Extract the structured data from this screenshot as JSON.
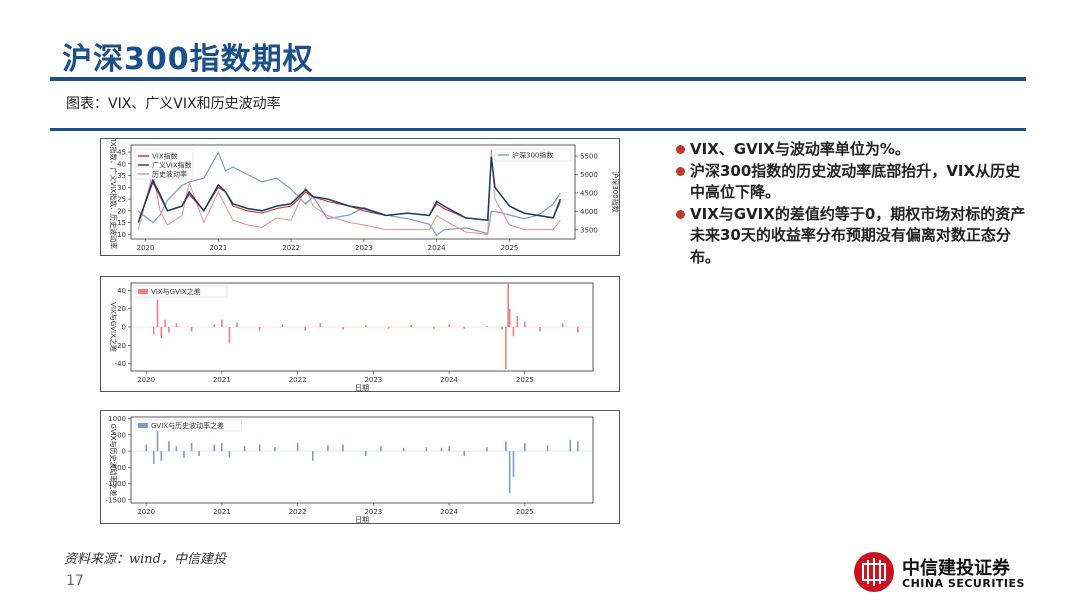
{
  "header": {
    "title": "沪深300指数期权"
  },
  "figure": {
    "caption": "图表：VIX、广义VIX和历史波动率"
  },
  "bullets": [
    "VIX、GVIX与波动率单位为%。",
    "沪深300指数的历史波动率底部抬升，VIX从历史中高位下降。",
    "VIX与GVIX的差值约等于0，期权市场对标的资产未来30天的收益率分布预期没有偏离对数正态分布。"
  ],
  "footer": {
    "source": "资料来源：wind，中信建投",
    "page_number": "17"
  },
  "logo": {
    "name_cn": "中信建投证券",
    "name_en": "CHINA SECURITIES"
  },
  "colors": {
    "accent": "#1b4f8a",
    "vix": "#c0392b",
    "gvix": "#1a3b6b",
    "hv": "#e88f8f",
    "csi300": "#7f9cbf",
    "diff1": "#f08080",
    "diff2": "#7f9cbf"
  },
  "chart_data": [
    {
      "type": "line",
      "x_ticks": [
        "2020",
        "2021",
        "2022",
        "2023",
        "2024",
        "2025"
      ],
      "ylabel": "VIX指数、广义VIX指数、历史波动率",
      "y2label": "沪深300指数",
      "ylim": [
        8,
        48
      ],
      "y_ticks": [
        10,
        15,
        20,
        25,
        30,
        35,
        40,
        45
      ],
      "y2lim": [
        3250,
        5800
      ],
      "y2_ticks": [
        3500,
        4000,
        4500,
        5000,
        5500
      ],
      "legend_left": [
        "VIX指数",
        "广义VIX指数",
        "历史波动率"
      ],
      "legend_right": [
        "沪深300指数"
      ],
      "x": [
        2019.9,
        2020.1,
        2020.2,
        2020.3,
        2020.5,
        2020.6,
        2020.8,
        2021.0,
        2021.1,
        2021.2,
        2021.4,
        2021.6,
        2021.8,
        2022.0,
        2022.2,
        2022.3,
        2022.5,
        2022.8,
        2023.0,
        2023.3,
        2023.6,
        2023.9,
        2024.0,
        2024.1,
        2024.4,
        2024.7,
        2024.75,
        2024.8,
        2025.0,
        2025.2,
        2025.4,
        2025.6,
        2025.7
      ],
      "series": [
        {
          "name": "VIX指数",
          "values": [
            15,
            32,
            26,
            20,
            22,
            27,
            20,
            30,
            28,
            22,
            20,
            19,
            21,
            22,
            28,
            26,
            24,
            22,
            20,
            18,
            19,
            18,
            23,
            21,
            17,
            16,
            42,
            30,
            22,
            19,
            18,
            17,
            24
          ]
        },
        {
          "name": "广义VIX指数",
          "values": [
            15,
            33,
            27,
            20,
            22,
            28,
            20,
            31,
            28,
            23,
            21,
            20,
            22,
            23,
            29,
            26,
            25,
            22,
            21,
            18,
            19,
            18,
            24,
            22,
            17,
            16,
            43,
            30,
            22,
            19,
            18,
            17,
            25
          ]
        },
        {
          "name": "历史波动率",
          "values": [
            12,
            36,
            20,
            14,
            18,
            32,
            15,
            28,
            22,
            16,
            14,
            13,
            17,
            16,
            30,
            22,
            18,
            15,
            14,
            12,
            12,
            12,
            18,
            16,
            11,
            10,
            46,
            25,
            14,
            12,
            12,
            12,
            16
          ]
        },
        {
          "name": "沪深300指数",
          "values": [
            4000,
            3700,
            3900,
            4300,
            4700,
            4800,
            4900,
            5600,
            5100,
            5200,
            5000,
            4800,
            4900,
            4600,
            4200,
            4400,
            3800,
            3900,
            4100,
            3900,
            3800,
            3650,
            3350,
            3500,
            3550,
            3400,
            4000,
            4000,
            3900,
            3800,
            3900,
            4200,
            4500
          ]
        }
      ]
    },
    {
      "type": "bar",
      "x_ticks": [
        "2020",
        "2021",
        "2022",
        "2023",
        "2024",
        "2025"
      ],
      "ylabel": "VIX与GVIX之差",
      "ylim": [
        -48,
        48
      ],
      "y_ticks": [
        -40,
        -20,
        0,
        20,
        40
      ],
      "legend": [
        "VIX与GVIX之差"
      ],
      "xlabel": "日期",
      "x": [
        2020.1,
        2020.15,
        2020.2,
        2020.25,
        2020.3,
        2020.4,
        2020.6,
        2020.9,
        2021.0,
        2021.1,
        2021.2,
        2021.5,
        2021.8,
        2022.1,
        2022.3,
        2022.6,
        2022.9,
        2023.2,
        2023.5,
        2023.8,
        2024.0,
        2024.2,
        2024.5,
        2024.7,
        2024.75,
        2024.78,
        2024.8,
        2024.85,
        2024.9,
        2025.0,
        2025.2,
        2025.5,
        2025.7
      ],
      "values": [
        -8,
        30,
        -12,
        8,
        -6,
        4,
        -5,
        3,
        8,
        -18,
        5,
        -4,
        3,
        -4,
        4,
        -3,
        2,
        -2,
        2,
        -2,
        3,
        -2,
        1,
        -3,
        -46,
        48,
        20,
        -10,
        12,
        6,
        -5,
        4,
        -6
      ]
    },
    {
      "type": "bar",
      "x_ticks": [
        "2020",
        "2021",
        "2022",
        "2023",
        "2024",
        "2025"
      ],
      "ylabel": "GVIX与历史波动率之差",
      "ylim": [
        -1600,
        1050
      ],
      "y_ticks": [
        -1500,
        -1000,
        -500,
        0,
        500,
        1000
      ],
      "legend": [
        "GVIX与历史波动率之差"
      ],
      "xlabel": "日期",
      "x": [
        2020.0,
        2020.1,
        2020.15,
        2020.2,
        2020.3,
        2020.4,
        2020.5,
        2020.6,
        2020.7,
        2020.9,
        2021.0,
        2021.1,
        2021.3,
        2021.5,
        2021.7,
        2022.0,
        2022.2,
        2022.4,
        2022.6,
        2022.9,
        2023.1,
        2023.4,
        2023.7,
        2023.9,
        2024.0,
        2024.2,
        2024.5,
        2024.75,
        2024.8,
        2024.85,
        2025.0,
        2025.3,
        2025.6,
        2025.7
      ],
      "values": [
        200,
        -400,
        900,
        -300,
        300,
        150,
        -200,
        250,
        -150,
        200,
        250,
        -200,
        150,
        200,
        120,
        250,
        -300,
        180,
        200,
        -150,
        150,
        100,
        120,
        100,
        150,
        -150,
        120,
        300,
        -1300,
        -800,
        250,
        180,
        350,
        300
      ]
    }
  ]
}
